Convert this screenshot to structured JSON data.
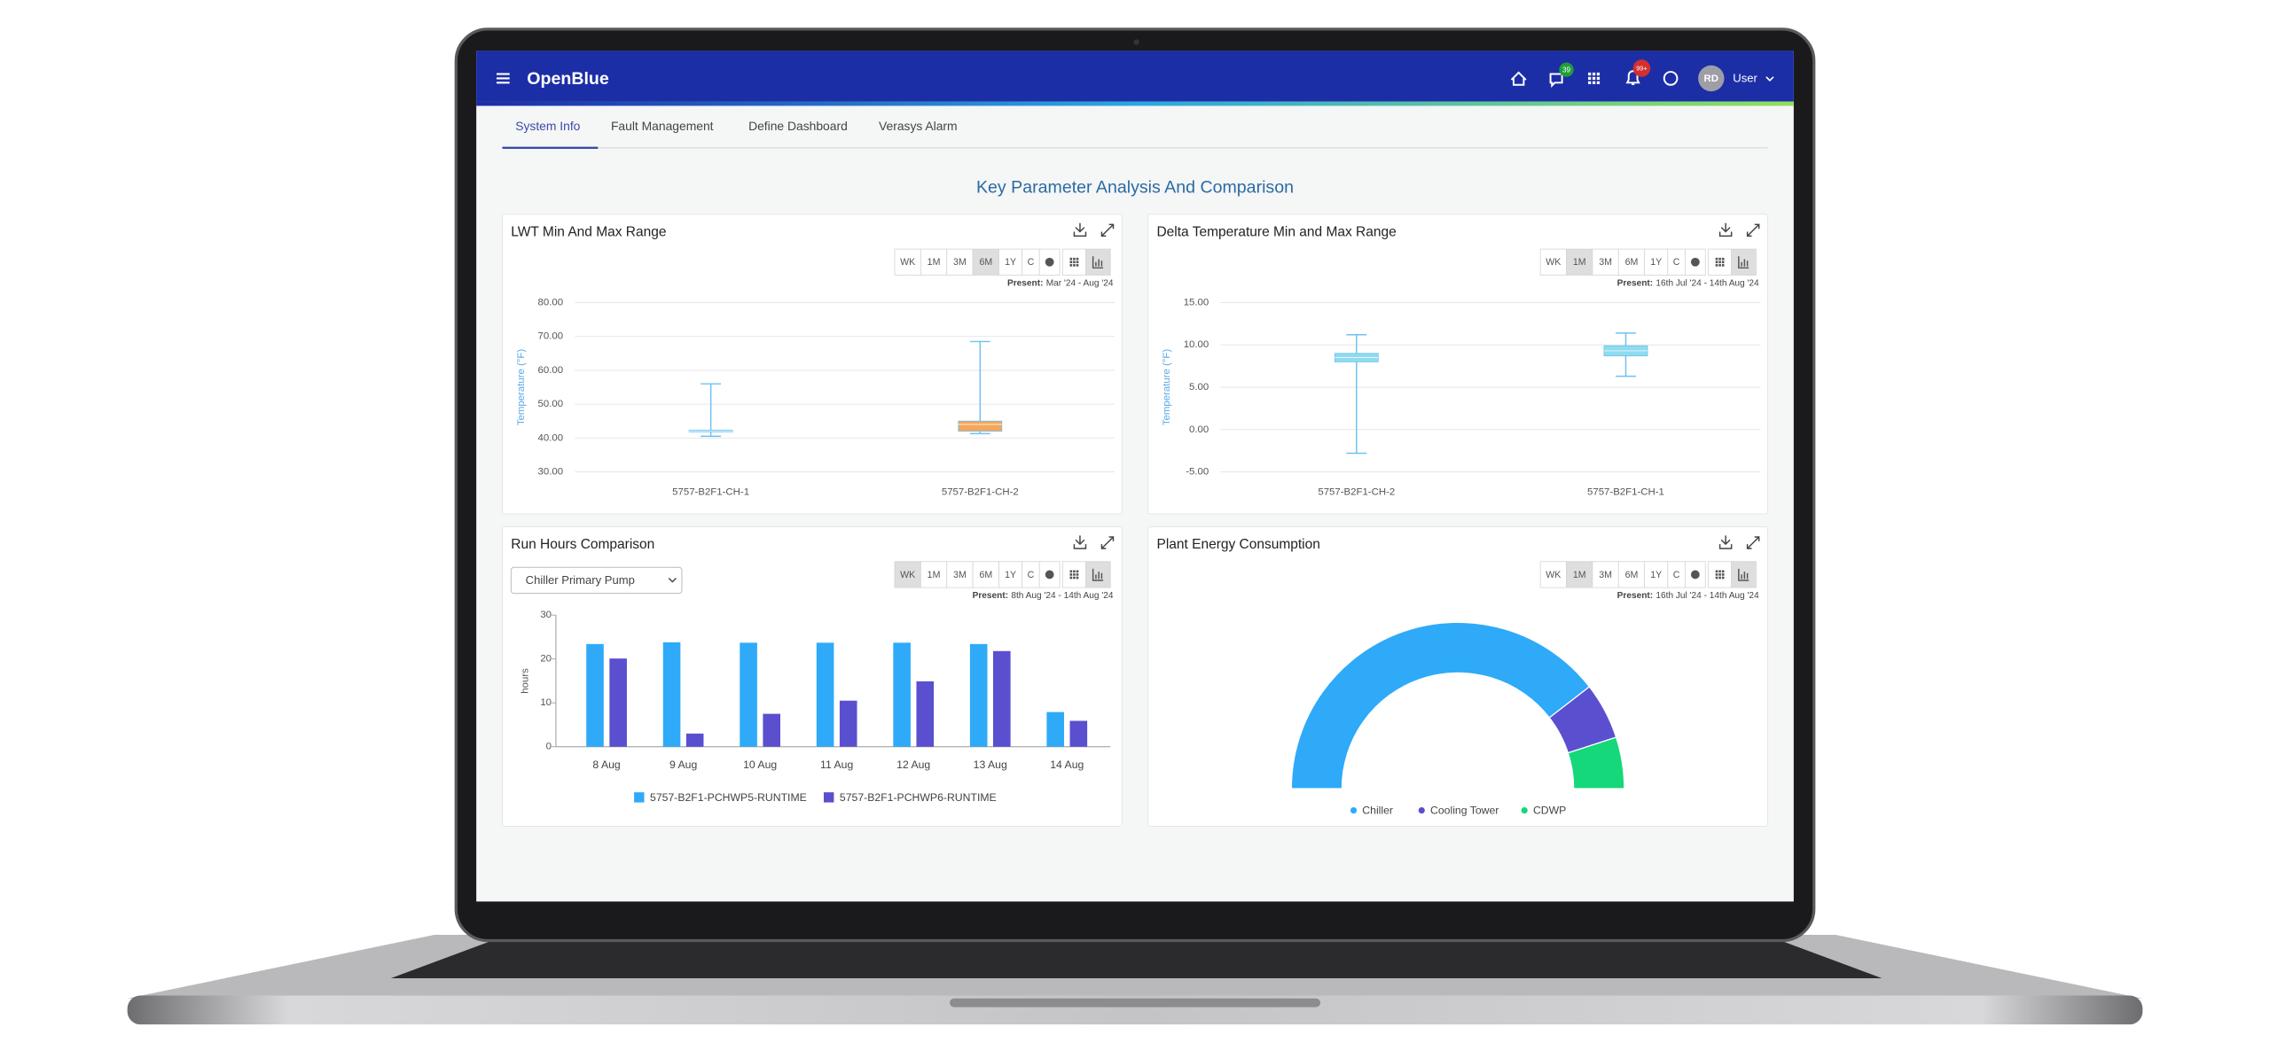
{
  "header": {
    "brand": "OpenBlue",
    "chat_badge": "39",
    "alert_badge": "99+",
    "avatar": "RD",
    "user": "User"
  },
  "tabs": [
    "System Info",
    "Fault Management",
    "Define Dashboard",
    "Verasys Alarm"
  ],
  "page_title": "Key Parameter Analysis And Comparison",
  "range_buttons": [
    "WK",
    "1M",
    "3M",
    "6M",
    "1Y",
    "C"
  ],
  "chart_data": [
    {
      "type": "box",
      "title": "LWT Min And Max Range",
      "active_range": 3,
      "present_label": "Present:",
      "present": "Mar '24 - Aug '24",
      "y_label": "Temperature (°F)",
      "categories": [
        "5757-B2F1-CH-1",
        "5757-B2F1-CH-2"
      ],
      "boxes": [
        {
          "min": 40.5,
          "q1": 41.8,
          "median": 42,
          "q3": 42.3,
          "max": 56,
          "color": "#7cc8f0"
        },
        {
          "min": 41.3,
          "q1": 42,
          "median": 44,
          "q3": 45,
          "max": 68.5,
          "color": "#f5a65b"
        }
      ],
      "whisker_color": "#6ec1f2",
      "ylim": [
        30,
        80
      ],
      "yticks": [
        {
          "value": 30,
          "label": "30.00"
        },
        {
          "value": 40,
          "label": "40.00"
        },
        {
          "value": 50,
          "label": "50.00"
        },
        {
          "value": 60,
          "label": "60.00"
        },
        {
          "value": 70,
          "label": "70.00"
        },
        {
          "value": 80,
          "label": "80.00"
        }
      ],
      "grid": true
    },
    {
      "type": "box",
      "title": "Delta Temperature Min and Max Range",
      "active_range": 1,
      "present_label": "Present:",
      "present": "16th Jul '24 - 14th Aug '24",
      "y_label": "Temperature (°F)",
      "categories": [
        "5757-B2F1-CH-2",
        "5757-B2F1-CH-1"
      ],
      "boxes": [
        {
          "min": -2.8,
          "q1": 8,
          "median": 8.5,
          "q3": 9,
          "max": 11.2,
          "color": "#8fdcef"
        },
        {
          "min": 6.3,
          "q1": 8.7,
          "median": 9.3,
          "q3": 9.9,
          "max": 11.4,
          "color": "#8fdcef"
        }
      ],
      "whisker_color": "#6ec1f2",
      "ylim": [
        -5,
        15
      ],
      "yticks": [
        {
          "value": -5,
          "label": "-5.00"
        },
        {
          "value": 0,
          "label": "0.00"
        },
        {
          "value": 5,
          "label": "5.00"
        },
        {
          "value": 10,
          "label": "10.00"
        },
        {
          "value": 15,
          "label": "15.00"
        }
      ],
      "grid": true
    },
    {
      "type": "bar",
      "title": "Run Hours Comparison",
      "active_range": 0,
      "present_label": "Present:",
      "present": "8th Aug '24 - 14th Aug '24",
      "dropdown": "Chiller Primary Pump",
      "y_label": "hours",
      "categories": [
        "8 Aug",
        "9 Aug",
        "10 Aug",
        "11 Aug",
        "12 Aug",
        "13 Aug",
        "14 Aug"
      ],
      "series": [
        {
          "name": "5757-B2F1-PCHWP5-RUNTIME",
          "color": "#2eaaf8",
          "values": [
            23.4,
            23.8,
            23.7,
            23.7,
            23.7,
            23.4,
            7.9
          ]
        },
        {
          "name": "5757-B2F1-PCHWP6-RUNTIME",
          "color": "#5a4fcf",
          "values": [
            20.1,
            3,
            7.5,
            10.5,
            14.9,
            21.8,
            5.9
          ]
        }
      ],
      "ylim": [
        0,
        30
      ],
      "yticks": [
        0,
        10,
        20,
        30
      ],
      "grid": false
    },
    {
      "type": "half-donut",
      "title": "Plant Energy Consumption",
      "active_range": 1,
      "present_label": "Present:",
      "present": "16th Jul '24 - 14th Aug '24",
      "categories": [
        "Chiller",
        "Cooling Tower",
        "CDWP"
      ],
      "values": [
        79,
        11,
        10
      ],
      "colors": [
        "#2eaaf8",
        "#5a4fcf",
        "#14d879"
      ]
    }
  ]
}
